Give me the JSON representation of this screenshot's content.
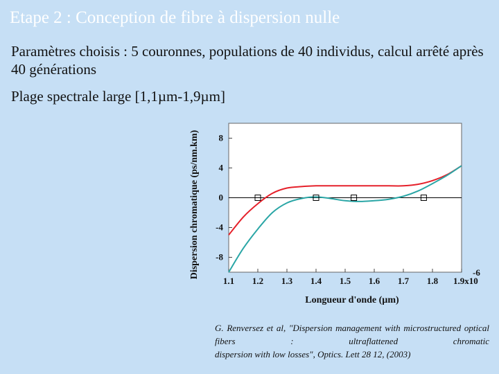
{
  "slide": {
    "title": "Etape 2 : Conception de fibre à dispersion nulle",
    "para1": "Paramètres choisis : 5 couronnes, populations de 40 individus, calcul arrêté après 40 générations",
    "para2": "Plage spectrale large [1,1µm-1,9µm]",
    "citation_line1": "G. Renversez et al, \"Dispersion management with microstructured optical fibers : ultraflattened chromatic",
    "citation_line2": "dispersion with low losses\", Optics. Lett 28 12, (2003)"
  },
  "colors": {
    "background": "#c6dff5",
    "plot_area": "#ffffff",
    "red_curve": "#e5202a",
    "teal_curve": "#2aa6a6",
    "zero_line": "#000000",
    "markers": "#000000"
  },
  "chart_data": {
    "type": "line",
    "xlabel": "Longueur d'onde (µm)",
    "ylabel": "Dispersion chromatique (ps/nm.km)",
    "x_tick_labels": [
      "1.1",
      "1.2",
      "1.3",
      "1.4",
      "1.5",
      "1.6",
      "1.7",
      "1.8",
      "1.9x10"
    ],
    "x_exponent_label": "-6",
    "xlim": [
      1.1,
      1.9
    ],
    "ylim": [
      -10,
      10
    ],
    "x_ticks": [
      1.1,
      1.2,
      1.3,
      1.4,
      1.5,
      1.6,
      1.7,
      1.8,
      1.9
    ],
    "y_ticks": [
      -8,
      -4,
      0,
      4,
      8
    ],
    "grid": false,
    "series": [
      {
        "color": "#e5202a",
        "x": [
          1.1,
          1.15,
          1.2,
          1.25,
          1.3,
          1.35,
          1.4,
          1.45,
          1.5,
          1.55,
          1.6,
          1.65,
          1.7,
          1.75,
          1.8,
          1.85,
          1.9
        ],
        "y": [
          -5.0,
          -2.6,
          -0.8,
          0.6,
          1.3,
          1.5,
          1.6,
          1.6,
          1.6,
          1.6,
          1.6,
          1.6,
          1.6,
          1.8,
          2.3,
          3.1,
          4.3
        ]
      },
      {
        "color": "#2aa6a6",
        "x": [
          1.1,
          1.15,
          1.2,
          1.25,
          1.3,
          1.35,
          1.4,
          1.45,
          1.5,
          1.55,
          1.6,
          1.65,
          1.7,
          1.75,
          1.8,
          1.85,
          1.9
        ],
        "y": [
          -10.0,
          -6.8,
          -4.2,
          -2.0,
          -0.7,
          -0.1,
          0.1,
          -0.1,
          -0.4,
          -0.5,
          -0.4,
          -0.2,
          0.2,
          0.9,
          1.9,
          3.0,
          4.3
        ]
      }
    ],
    "markers": {
      "x": [
        1.2,
        1.4,
        1.53,
        1.77
      ],
      "y": [
        0,
        0,
        0,
        0
      ]
    }
  }
}
